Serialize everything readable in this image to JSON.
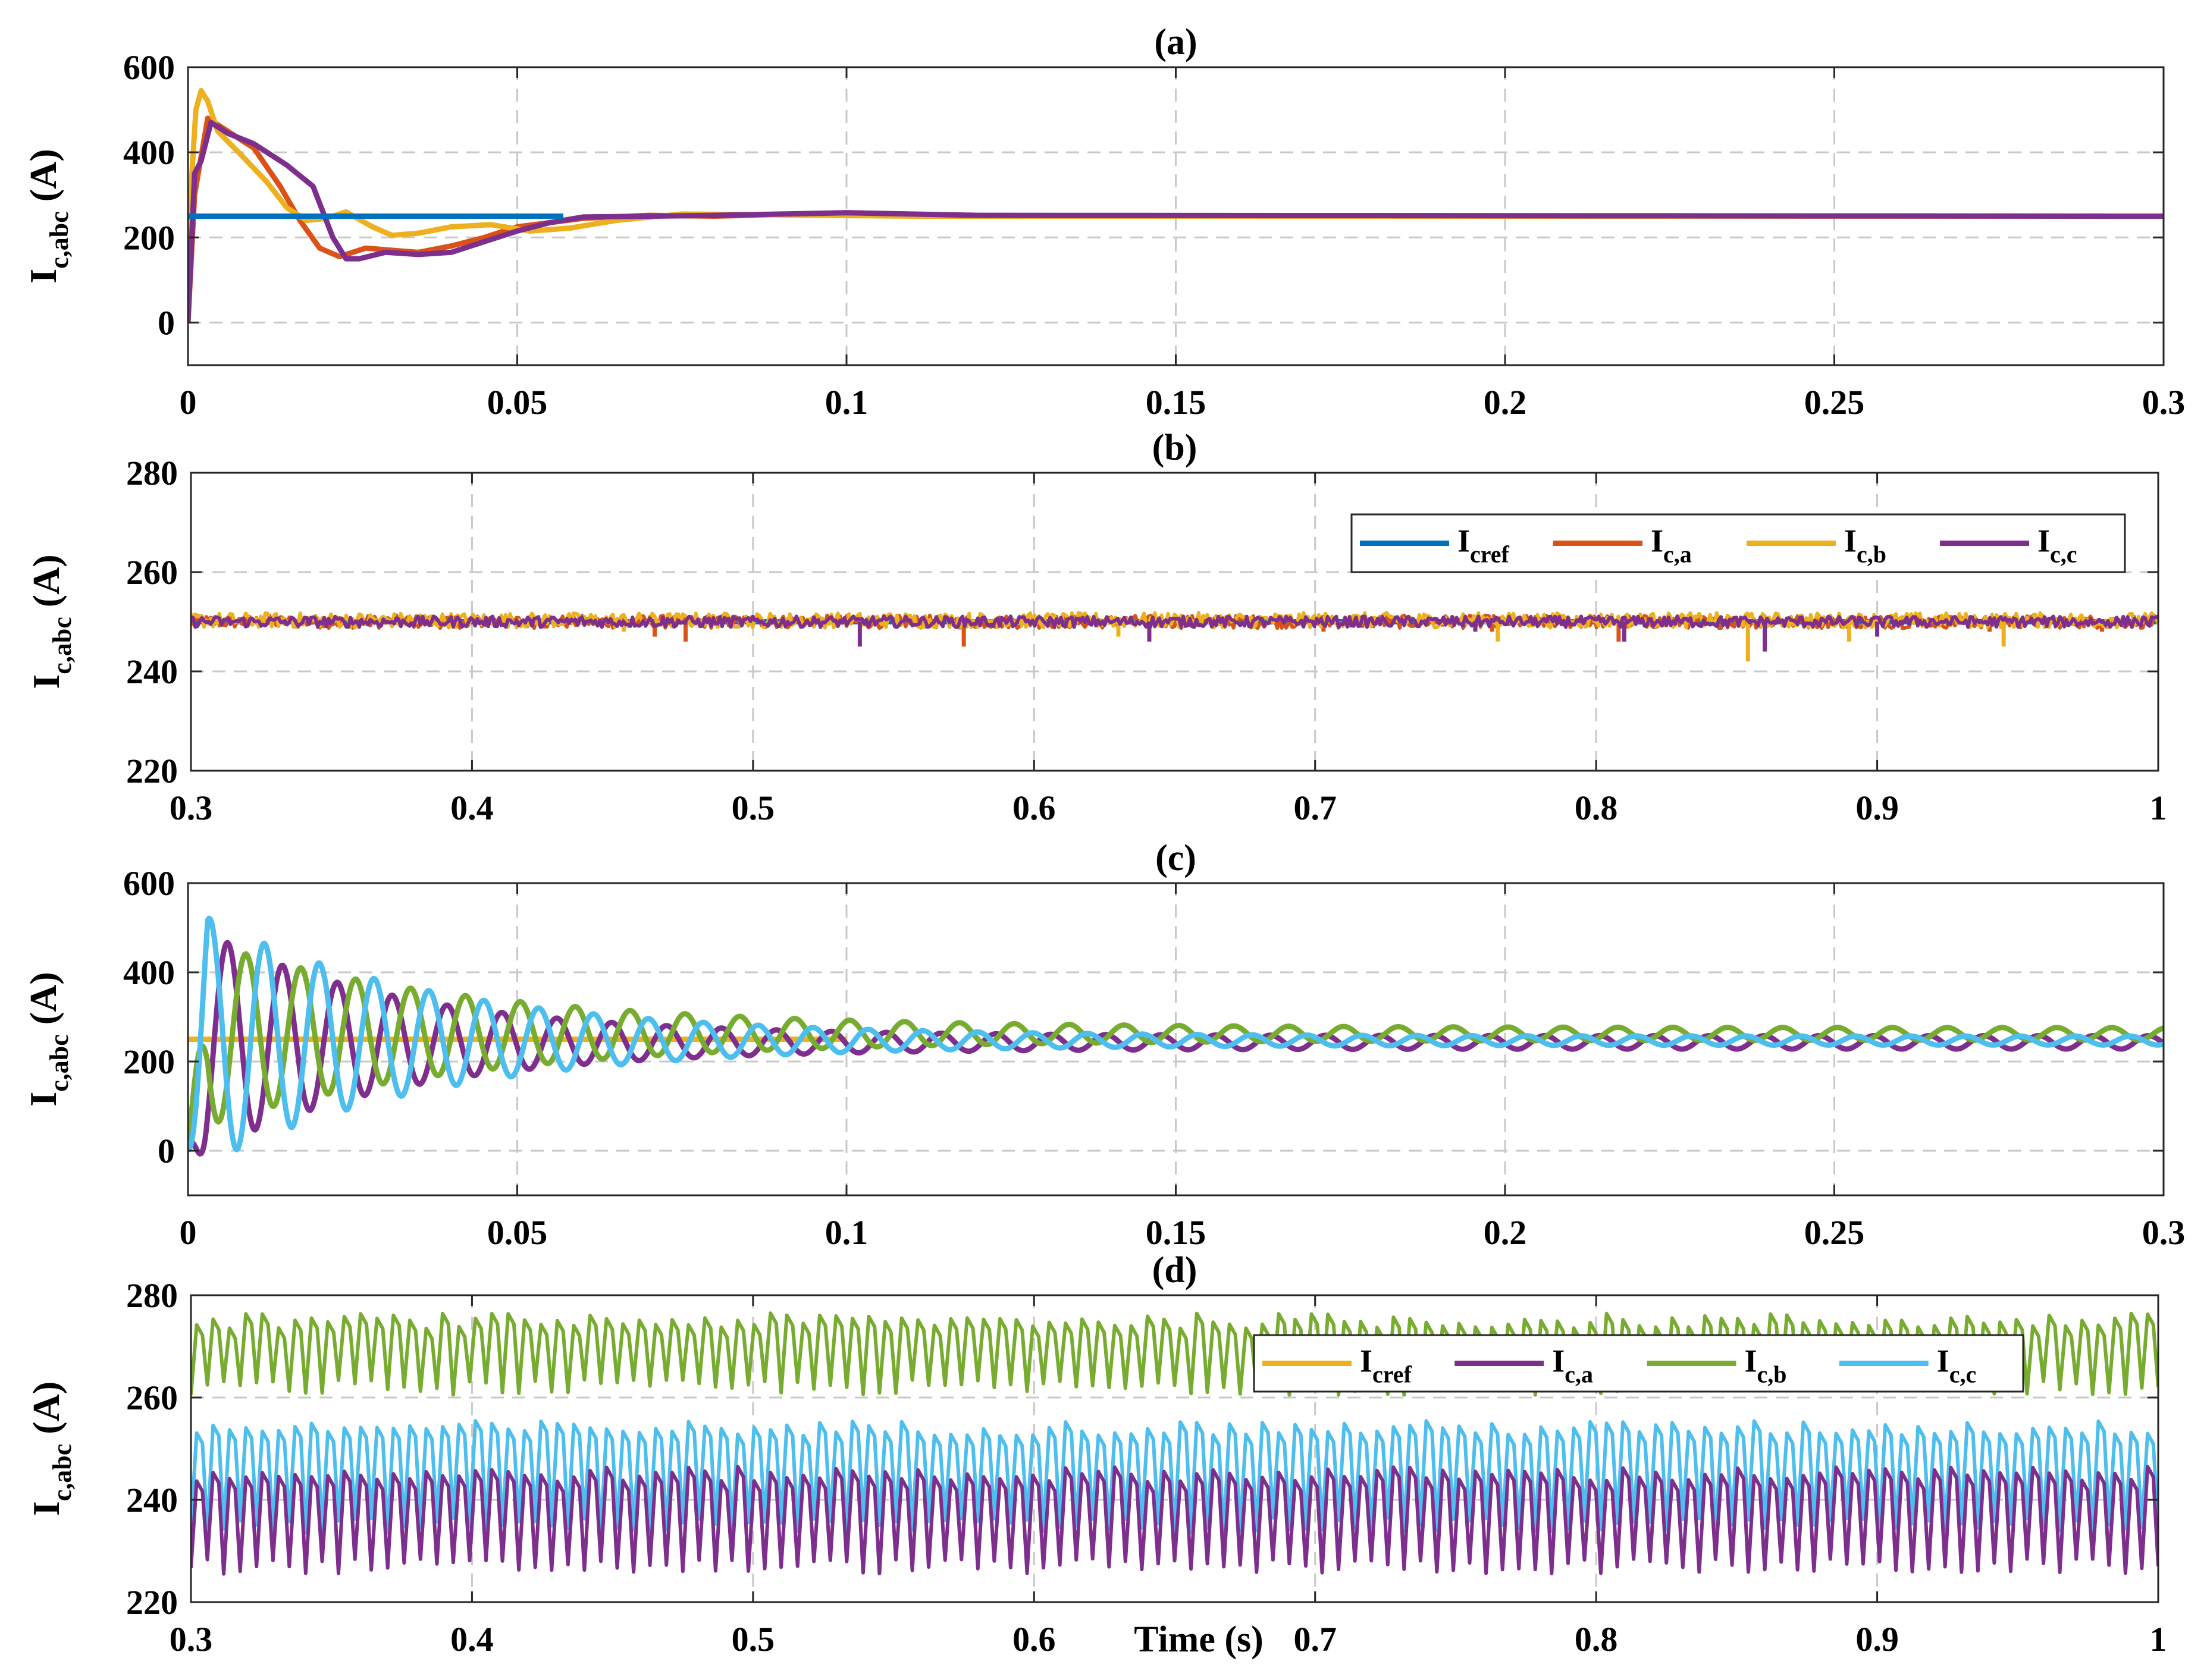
{
  "figure": {
    "xlabel": "Time (s)",
    "colors": {
      "blue": "#0072BD",
      "orange": "#D95319",
      "yellow": "#EDB120",
      "purple": "#7E2F8E",
      "green": "#77AC30",
      "cyan": "#4DBEEE",
      "grid": "#c8c8c8"
    }
  },
  "chart_data": [
    {
      "id": "a",
      "title": "(a)",
      "type": "line",
      "ylabel": {
        "main": "I",
        "sub": "c,abc",
        "unit": " (A)"
      },
      "xlim": [
        0,
        0.3
      ],
      "ylim": [
        -100,
        600
      ],
      "xticks": [
        0,
        0.05,
        0.1,
        0.15,
        0.2,
        0.25,
        0.3
      ],
      "xtick_labels": [
        "0",
        "0.05",
        "0.1",
        "0.15",
        "0.2",
        "0.25",
        "0.3"
      ],
      "yticks": [
        0,
        200,
        400,
        600
      ],
      "ytick_labels": [
        "0",
        "200",
        "400",
        "600"
      ],
      "legend": null,
      "series": [
        {
          "name": "I_c,a",
          "color": "orange",
          "points": [
            [
              0,
              0
            ],
            [
              0.001,
              300
            ],
            [
              0.002,
              390
            ],
            [
              0.003,
              480
            ],
            [
              0.006,
              450
            ],
            [
              0.01,
              410
            ],
            [
              0.014,
              320
            ],
            [
              0.017,
              240
            ],
            [
              0.02,
              175
            ],
            [
              0.023,
              155
            ],
            [
              0.027,
              175
            ],
            [
              0.031,
              170
            ],
            [
              0.035,
              165
            ],
            [
              0.04,
              180
            ],
            [
              0.045,
              200
            ],
            [
              0.05,
              225
            ],
            [
              0.06,
              245
            ],
            [
              0.07,
              252
            ],
            [
              0.08,
              250
            ],
            [
              0.1,
              258
            ],
            [
              0.12,
              250
            ],
            [
              0.3,
              250
            ]
          ],
          "spikes": []
        },
        {
          "name": "I_c,b",
          "color": "yellow",
          "points": [
            [
              0,
              0
            ],
            [
              0.0006,
              350
            ],
            [
              0.0012,
              500
            ],
            [
              0.002,
              545
            ],
            [
              0.003,
              520
            ],
            [
              0.0045,
              450
            ],
            [
              0.008,
              395
            ],
            [
              0.012,
              330
            ],
            [
              0.015,
              270
            ],
            [
              0.018,
              240
            ],
            [
              0.021,
              245
            ],
            [
              0.024,
              260
            ],
            [
              0.028,
              225
            ],
            [
              0.031,
              205
            ],
            [
              0.035,
              210
            ],
            [
              0.04,
              225
            ],
            [
              0.046,
              230
            ],
            [
              0.052,
              215
            ],
            [
              0.058,
              222
            ],
            [
              0.065,
              240
            ],
            [
              0.075,
              255
            ],
            [
              0.09,
              253
            ],
            [
              0.11,
              250
            ],
            [
              0.3,
              250
            ]
          ],
          "spikes": []
        },
        {
          "name": "I_c,c",
          "color": "purple",
          "points": [
            [
              0,
              0
            ],
            [
              0.001,
              350
            ],
            [
              0.002,
              380
            ],
            [
              0.0035,
              470
            ],
            [
              0.006,
              445
            ],
            [
              0.01,
              420
            ],
            [
              0.015,
              370
            ],
            [
              0.019,
              320
            ],
            [
              0.022,
              200
            ],
            [
              0.024,
              150
            ],
            [
              0.026,
              150
            ],
            [
              0.03,
              165
            ],
            [
              0.035,
              160
            ],
            [
              0.04,
              165
            ],
            [
              0.045,
              190
            ],
            [
              0.05,
              215
            ],
            [
              0.055,
              235
            ],
            [
              0.06,
              248
            ],
            [
              0.08,
              252
            ],
            [
              0.1,
              258
            ],
            [
              0.12,
              252
            ],
            [
              0.3,
              250
            ]
          ],
          "spikes": []
        },
        {
          "name": "I_cref",
          "color": "blue",
          "points": [
            [
              0,
              250
            ],
            [
              0.057,
              250
            ]
          ],
          "spikes": []
        }
      ]
    },
    {
      "id": "b",
      "title": "(b)",
      "type": "line",
      "ylabel": {
        "main": "I",
        "sub": "c,abc",
        "unit": " (A)"
      },
      "xlim": [
        0.3,
        1
      ],
      "ylim": [
        220,
        280
      ],
      "xticks": [
        0.3,
        0.4,
        0.5,
        0.6,
        0.7,
        0.8,
        0.9,
        1
      ],
      "xtick_labels": [
        "0.3",
        "0.4",
        "0.5",
        "0.6",
        "0.7",
        "0.8",
        "0.9",
        "1"
      ],
      "yticks": [
        220,
        240,
        260,
        280
      ],
      "ytick_labels": [
        "220",
        "240",
        "260",
        "280"
      ],
      "legend": {
        "placement": "top-right",
        "entries": [
          {
            "main": "I",
            "sub": "cref",
            "color": "blue"
          },
          {
            "main": "I",
            "sub": "c,a",
            "color": "orange"
          },
          {
            "main": "I",
            "sub": "c,b",
            "color": "yellow"
          },
          {
            "main": "I",
            "sub": "c,c",
            "color": "purple"
          }
        ]
      },
      "series": [
        {
          "name": "I_cref",
          "color": "blue",
          "points": [
            [
              0.3,
              250
            ],
            [
              1,
              250
            ]
          ],
          "spikes": []
        },
        {
          "name": "I_c,a",
          "color": "orange",
          "noisy": true,
          "center": 250,
          "amplitude": 1.3,
          "points": [],
          "spikes": [
            [
              0.465,
              247
            ],
            [
              0.476,
              246
            ],
            [
              0.575,
              245
            ],
            [
              0.703,
              248
            ],
            [
              0.763,
              248
            ],
            [
              0.808,
              246
            ],
            [
              0.94,
              248
            ],
            [
              0.98,
              248
            ]
          ]
        },
        {
          "name": "I_c,b",
          "color": "yellow",
          "noisy": true,
          "center": 250.3,
          "amplitude": 1.5,
          "points": [],
          "spikes": [
            [
              0.454,
              248
            ],
            [
              0.63,
              247
            ],
            [
              0.765,
              246
            ],
            [
              0.854,
              242
            ],
            [
              0.89,
              246
            ],
            [
              0.945,
              245
            ]
          ]
        },
        {
          "name": "I_c,c",
          "color": "purple",
          "noisy": true,
          "center": 250,
          "amplitude": 1.1,
          "points": [],
          "spikes": [
            [
              0.538,
              245
            ],
            [
              0.641,
              246
            ],
            [
              0.757,
              248
            ],
            [
              0.81,
              246
            ],
            [
              0.86,
              244
            ],
            [
              0.9,
              247
            ]
          ]
        }
      ]
    },
    {
      "id": "c",
      "title": "(c)",
      "type": "line",
      "ylabel": {
        "main": "I",
        "sub": "c,abc",
        "unit": " (A)"
      },
      "xlim": [
        0,
        0.3
      ],
      "ylim": [
        -100,
        600
      ],
      "xticks": [
        0,
        0.05,
        0.1,
        0.15,
        0.2,
        0.25,
        0.3
      ],
      "xtick_labels": [
        "0",
        "0.05",
        "0.1",
        "0.15",
        "0.2",
        "0.25",
        "0.3"
      ],
      "yticks": [
        0,
        200,
        400,
        600
      ],
      "ytick_labels": [
        "0",
        "200",
        "400",
        "600"
      ],
      "legend": null,
      "series": [
        {
          "name": "I_cref",
          "color": "yellow",
          "points": [
            [
              0,
              250
            ],
            [
              0.1,
              250
            ]
          ],
          "spikes": []
        },
        {
          "name": "I_c,a",
          "color": "purple",
          "osc": {
            "center": 243,
            "a0": 270,
            "a1": 15,
            "tau": 0.03,
            "freq": 120,
            "phase": 3.3,
            "start": 0
          },
          "points": [],
          "spikes": []
        },
        {
          "name": "I_c,b",
          "color": "green",
          "osc": {
            "center": 262,
            "a0": 220,
            "a1": 14,
            "tau": 0.04,
            "freq": 120,
            "phase": 1.2,
            "start": 0
          },
          "points": [],
          "spikes": []
        },
        {
          "name": "I_c,c",
          "color": "cyan",
          "osc": {
            "center": 247,
            "a0": 300,
            "a1": 10,
            "tau": 0.035,
            "freq": 120,
            "phase": -0.9,
            "start": 0
          },
          "points": [],
          "spikes": []
        }
      ]
    },
    {
      "id": "d",
      "title": "(d)",
      "type": "line",
      "ylabel": {
        "main": "I",
        "sub": "c,abc",
        "unit": " (A)"
      },
      "xlim": [
        0.3,
        1
      ],
      "ylim": [
        220,
        280
      ],
      "xticks": [
        0.3,
        0.4,
        0.5,
        0.6,
        0.7,
        0.8,
        0.9,
        1
      ],
      "xtick_labels": [
        "0.3",
        "0.4",
        "0.5",
        "0.6",
        "0.7",
        "0.8",
        "0.9",
        "1"
      ],
      "yticks": [
        220,
        240,
        260,
        280
      ],
      "ytick_labels": [
        "220",
        "240",
        "260",
        "280"
      ],
      "legend": {
        "placement": "top-right",
        "entries": [
          {
            "main": "I",
            "sub": "cref",
            "color": "yellow"
          },
          {
            "main": "I",
            "sub": "c,a",
            "color": "purple"
          },
          {
            "main": "I",
            "sub": "c,b",
            "color": "green"
          },
          {
            "main": "I",
            "sub": "c,c",
            "color": "cyan"
          }
        ]
      },
      "series": [
        {
          "name": "I_c,b",
          "color": "green",
          "saw": {
            "count": 120,
            "low": 262,
            "high": 275
          },
          "points": [],
          "spikes": []
        },
        {
          "name": "I_c,c",
          "color": "cyan",
          "saw": {
            "count": 120,
            "low": 235,
            "high": 254
          },
          "points": [],
          "spikes": []
        },
        {
          "name": "I_c,a",
          "color": "purple",
          "saw": {
            "count": 120,
            "low": 227,
            "high": 245
          },
          "points": [],
          "spikes": []
        }
      ]
    }
  ]
}
